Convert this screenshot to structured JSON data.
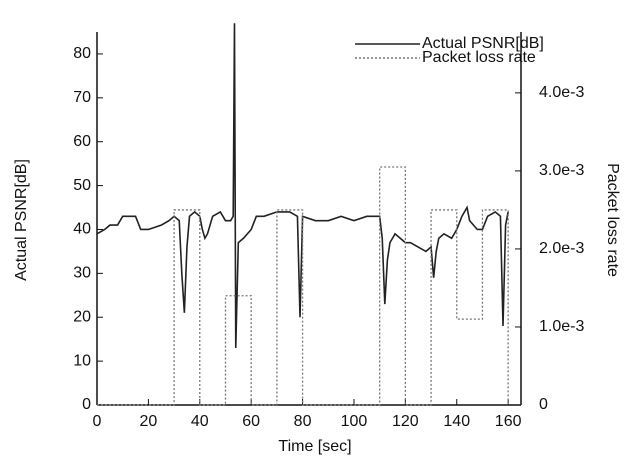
{
  "chart_data": {
    "type": "line",
    "xlabel": "Time [sec]",
    "ylabel": "Actual PSNR[dB]",
    "y2label": "Packet loss rate",
    "xlim": [
      0,
      165
    ],
    "xticks": [
      0,
      20,
      40,
      60,
      80,
      100,
      120,
      140,
      160
    ],
    "ylim": [
      0,
      85
    ],
    "yticks": [
      0,
      10,
      20,
      30,
      40,
      50,
      60,
      70,
      80
    ],
    "y2lim": [
      0,
      0.00478
    ],
    "y2ticks": [
      0,
      {
        "value": 0.001,
        "label": "1.0e-3"
      },
      {
        "value": 0.002,
        "label": "2.0e-3"
      },
      {
        "value": 0.003,
        "label": "3.0e-3"
      },
      {
        "value": 0.004,
        "label": "4.0e-3"
      }
    ],
    "legend": "upper right",
    "series": [
      {
        "name": "Actual PSNR[dB]",
        "color": "#222222",
        "style": "solid",
        "x": [
          0,
          3,
          5,
          8,
          10,
          12,
          15,
          17,
          20,
          25,
          28,
          30,
          32,
          33,
          34,
          35,
          36,
          38,
          40,
          41,
          42,
          43,
          45,
          48,
          50,
          52,
          53,
          53.5,
          54,
          55,
          57,
          60,
          62,
          65,
          70,
          75,
          78,
          79,
          80,
          85,
          90,
          95,
          100,
          105,
          108,
          110,
          111,
          112,
          113,
          114,
          116,
          118,
          120,
          122,
          125,
          128,
          130,
          131,
          132,
          133,
          135,
          138,
          140,
          142,
          144,
          145,
          148,
          150,
          152,
          155,
          157,
          158,
          159,
          160
        ],
        "values": [
          39,
          40,
          41,
          41,
          43,
          43,
          43,
          40,
          40,
          41,
          42,
          43,
          42,
          30,
          21,
          36,
          43,
          44,
          43,
          40,
          38,
          39,
          43,
          44,
          42,
          42,
          43,
          87,
          13,
          37,
          38,
          40,
          43,
          43,
          44,
          44,
          43,
          20,
          43,
          42,
          42,
          43,
          42,
          43,
          43,
          43,
          38,
          23,
          33,
          37,
          39,
          38,
          37,
          37,
          36,
          35,
          36,
          29,
          35,
          38,
          39,
          38,
          40,
          43,
          45,
          42,
          40,
          40,
          43,
          44,
          43,
          18,
          41,
          44
        ]
      },
      {
        "name": "Packet loss rate",
        "color": "#777777",
        "style": "dotted",
        "axis": "y2",
        "x": [
          0,
          30,
          30,
          40,
          40,
          50,
          50,
          60,
          60,
          70,
          70,
          80,
          80,
          110,
          110,
          120,
          120,
          130,
          130,
          140,
          140,
          150,
          150,
          160,
          160
        ],
        "values": [
          0,
          0,
          0.0025,
          0.0025,
          0,
          0,
          0.0014,
          0.0014,
          0,
          0,
          0.0025,
          0.0025,
          0,
          0,
          0.00305,
          0.00305,
          0,
          0,
          0.0025,
          0.0025,
          0.0011,
          0.0011,
          0.0025,
          0.0025,
          0
        ]
      }
    ]
  }
}
